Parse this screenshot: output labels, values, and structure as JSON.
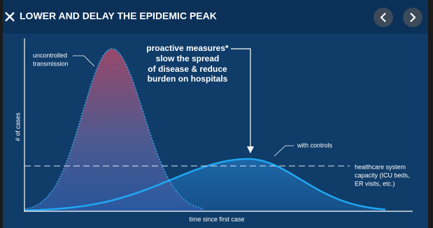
{
  "header": {
    "title": "LOWER AND DELAY THE EPIDEMIC PEAK"
  },
  "chart": {
    "y_axis_label": "# of cases",
    "x_axis_label": "time since first case",
    "annotations": {
      "uncontrolled": [
        "uncontrolled",
        "transmission"
      ],
      "measures": [
        "proactive measures*",
        "slow the spread",
        "of disease & reduce",
        "burden on hospitals"
      ],
      "controls": "with controls",
      "capacity": [
        "healthcare system",
        "capacity (ICU beds,",
        "ER visits, etc.)"
      ]
    }
  }
}
